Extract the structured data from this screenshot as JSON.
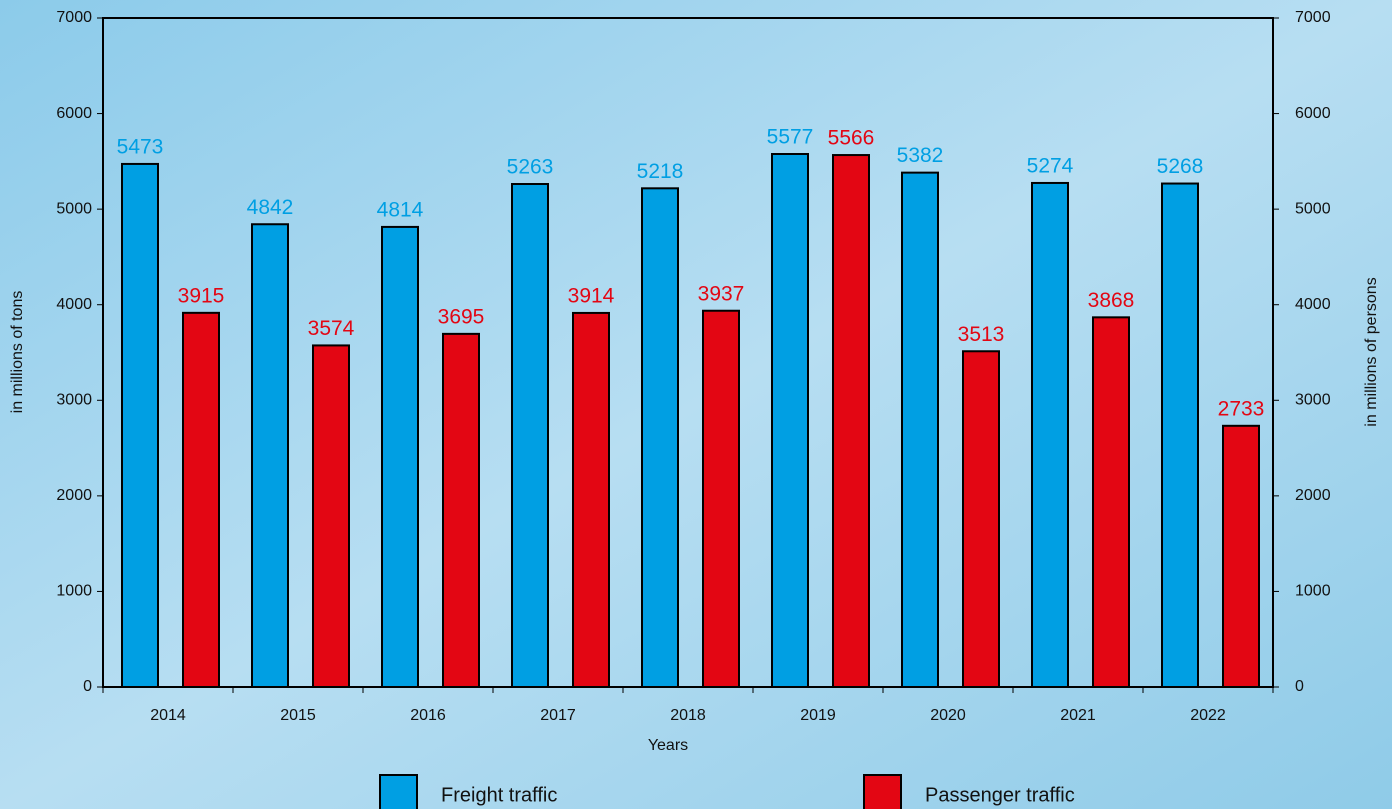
{
  "chart_data": {
    "type": "bar",
    "x_label": "Years",
    "y_label": "in millions of tons",
    "y2_label": "in millions of persons",
    "categories": [
      "2014",
      "2015",
      "2016",
      "2017",
      "2018",
      "2019",
      "2020",
      "2021",
      "2022"
    ],
    "series": [
      {
        "name": "Freight traffic",
        "color": "#009fe3",
        "axis": "y",
        "values": [
          5473,
          4842,
          4814,
          5263,
          5218,
          5577,
          5382,
          5274,
          5268
        ]
      },
      {
        "name": "Passenger traffic",
        "color": "#e30613",
        "axis": "y2",
        "values": [
          3915,
          3574,
          3695,
          3914,
          3937,
          5566,
          3513,
          3868,
          2733
        ]
      }
    ],
    "ylim": [
      0,
      7000
    ],
    "yticks": [
      0,
      1000,
      2000,
      3000,
      4000,
      5000,
      6000,
      7000
    ],
    "y2lim": [
      0,
      7000
    ],
    "y2ticks": [
      0,
      1000,
      2000,
      3000,
      4000,
      5000,
      6000,
      7000
    ],
    "legend": "bottom"
  }
}
